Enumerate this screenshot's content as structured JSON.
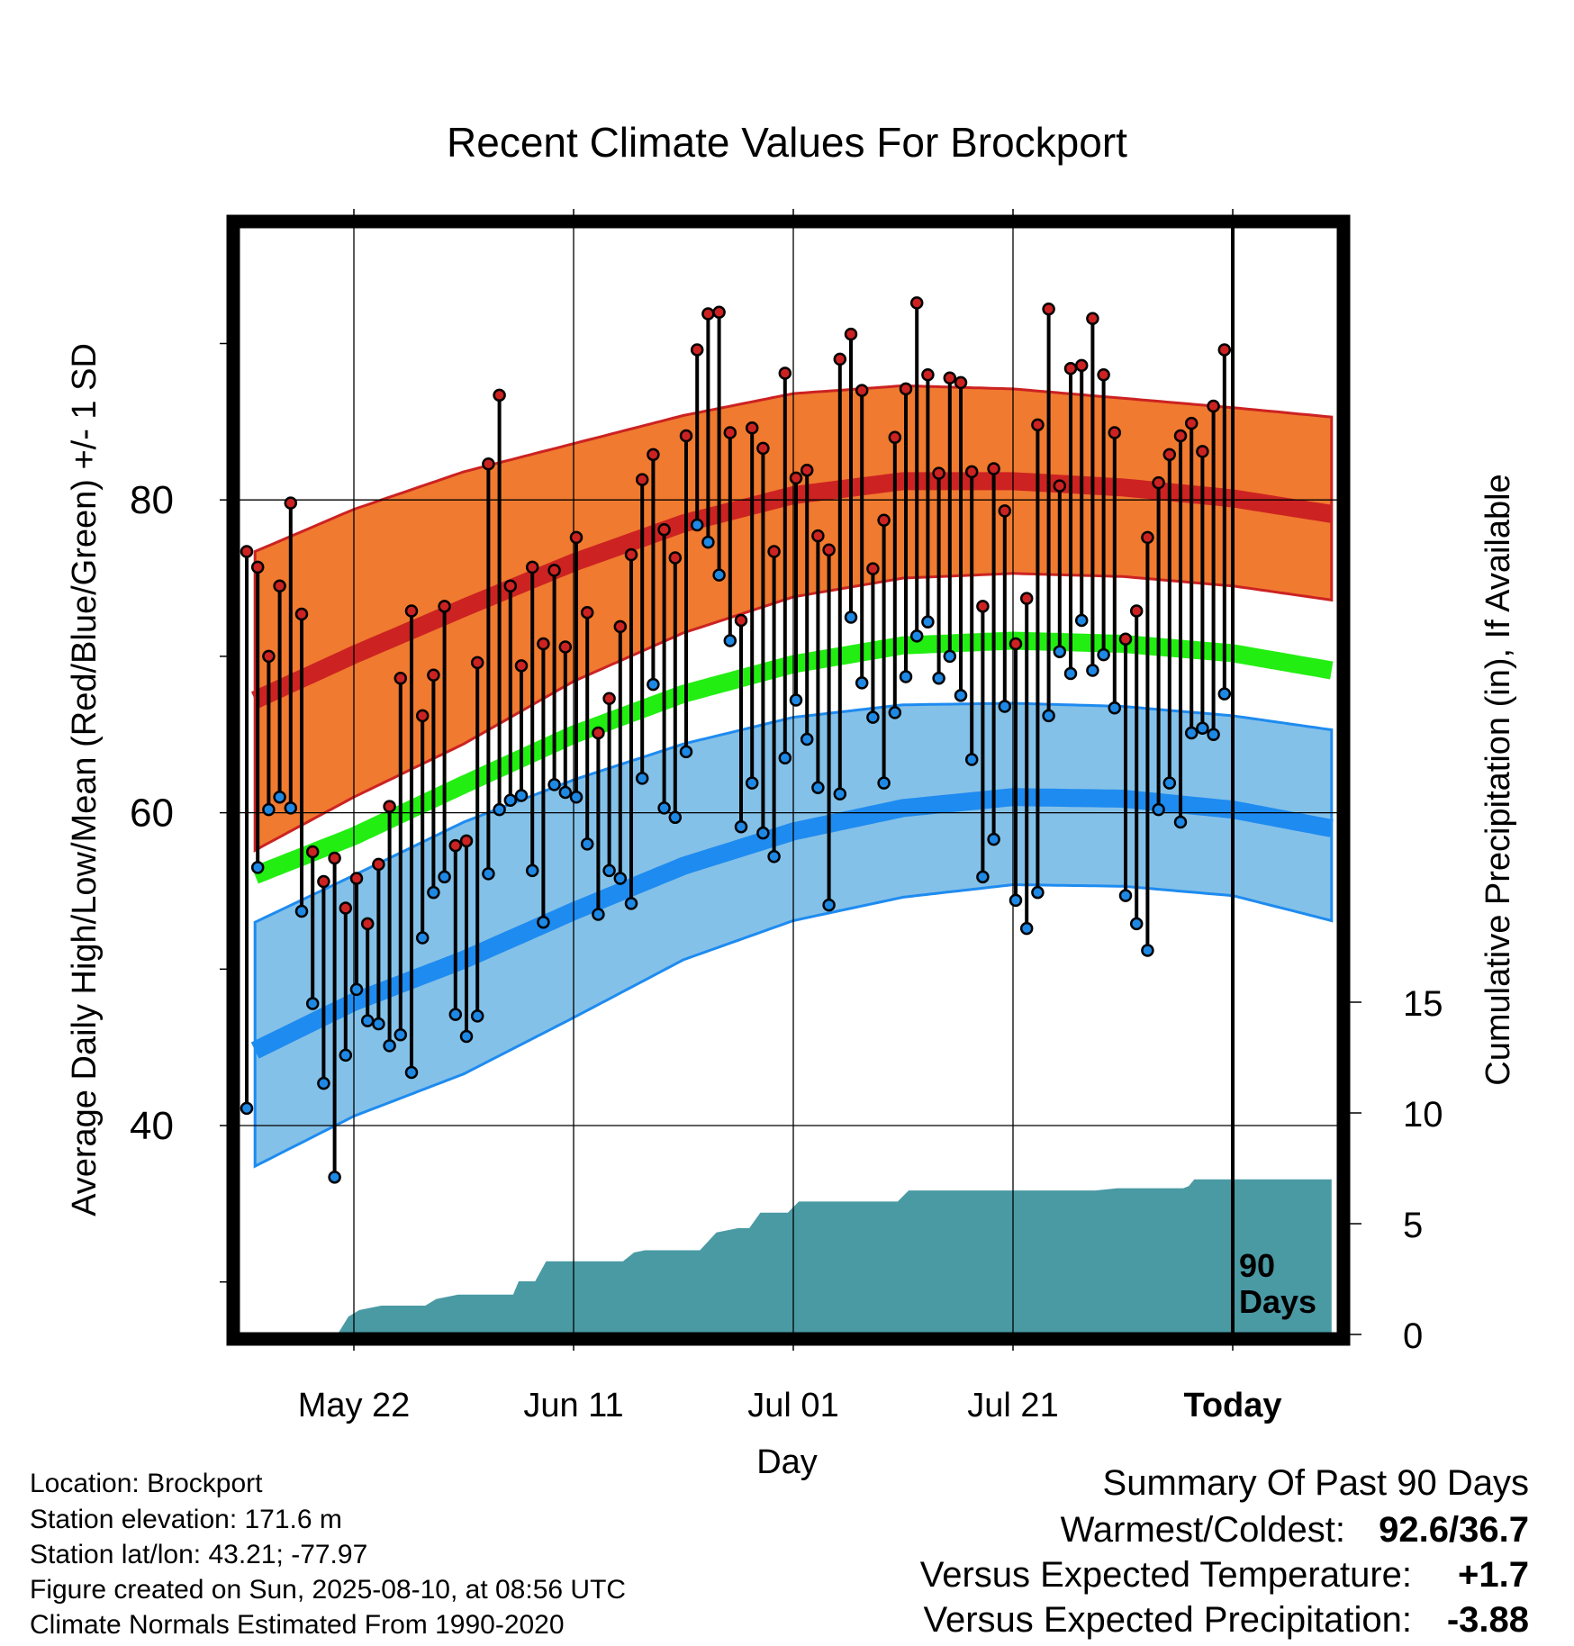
{
  "chart_data": {
    "type": "line",
    "title": "Recent Climate Values For Brockport",
    "xlabel": "Day",
    "ylabel_left": "Average Daily High/Low/Mean (Red/Blue/Green) +/- 1 SD",
    "ylabel_right": "Cumulative Precipitation (in), If Available",
    "x_range_days": [
      -89,
      9
    ],
    "ylim": [
      27,
      98
    ],
    "precip_ylim": [
      0,
      50
    ],
    "x_ticks": [
      {
        "day": -80,
        "label": "May 22"
      },
      {
        "day": -60,
        "label": "Jun 11"
      },
      {
        "day": -40,
        "label": "Jul 01"
      },
      {
        "day": -20,
        "label": "Jul 21"
      },
      {
        "day": 0,
        "label": "Today"
      }
    ],
    "y_ticks": [
      40,
      60,
      80
    ],
    "y_minor_ticks": [
      30,
      50,
      70,
      90
    ],
    "precip_ticks": [
      0,
      5,
      10,
      15
    ],
    "today_label": "90\nDays",
    "colors": {
      "high_band": "#F07A2F",
      "high_mean": "#CC2222",
      "low_band": "#84C1E8",
      "low_mean": "#1E8BF0",
      "mean": "#22EE11",
      "precip": "#4A9AA4",
      "high_dot": "#CC2222",
      "low_dot": "#1E88E5"
    },
    "series": [
      {
        "name": "High",
        "values": [
          76.7,
          75.7,
          70.0,
          74.5,
          79.8,
          72.7,
          57.5,
          55.6,
          57.1,
          53.9,
          55.8,
          52.9,
          56.7,
          60.4,
          68.6,
          72.9,
          66.2,
          68.8,
          73.2,
          57.9,
          58.2,
          69.6,
          82.3,
          86.7,
          74.5,
          69.4,
          75.7,
          70.8,
          75.5,
          70.6,
          77.6,
          72.8,
          65.1,
          67.3,
          71.9,
          76.5,
          81.3,
          82.9,
          78.1,
          76.3,
          84.1,
          89.6,
          91.9,
          92.0,
          84.3,
          72.3,
          84.6,
          83.3,
          76.7,
          88.1,
          81.4,
          81.9,
          77.7,
          76.8,
          89.0,
          90.6,
          87.0,
          75.6,
          78.7,
          84.0,
          87.1,
          92.6,
          88.0,
          81.7,
          87.8,
          87.5,
          81.8,
          73.2,
          82.0,
          79.3,
          70.8,
          73.7,
          84.8,
          92.2,
          80.9,
          88.4,
          88.6,
          91.6,
          88.0,
          84.3,
          71.1,
          72.9,
          77.6,
          81.1,
          82.9,
          84.1,
          84.9,
          83.1,
          86.0,
          89.6
        ]
      },
      {
        "name": "Low",
        "values": [
          41.1,
          56.5,
          60.2,
          61.0,
          60.3,
          53.7,
          47.8,
          42.7,
          36.7,
          44.5,
          48.7,
          46.7,
          46.5,
          45.1,
          45.8,
          43.4,
          52.0,
          54.9,
          55.9,
          47.1,
          45.7,
          47.0,
          56.1,
          60.2,
          60.8,
          61.1,
          56.3,
          53.0,
          61.8,
          61.3,
          61.0,
          58.0,
          53.5,
          56.3,
          55.8,
          54.2,
          62.2,
          68.2,
          60.3,
          59.7,
          63.9,
          78.4,
          77.3,
          75.2,
          71.0,
          59.1,
          61.9,
          58.7,
          57.2,
          63.5,
          67.2,
          64.7,
          61.6,
          54.1,
          61.2,
          72.5,
          68.3,
          66.1,
          61.9,
          66.4,
          68.7,
          71.3,
          72.2,
          68.6,
          70.0,
          67.5,
          63.4,
          55.9,
          58.3,
          66.8,
          54.4,
          52.6,
          54.9,
          66.2,
          70.3,
          68.9,
          72.3,
          69.1,
          70.1,
          66.7,
          54.7,
          52.9,
          51.2,
          60.2,
          61.9,
          59.4,
          65.1,
          65.4,
          65.0,
          67.6
        ]
      },
      {
        "name": "Normal High",
        "knots": [
          [
            -89,
            67.2
          ],
          [
            -80,
            70.1
          ],
          [
            -70,
            73.1
          ],
          [
            -60,
            76.0
          ],
          [
            -50,
            78.5
          ],
          [
            -40,
            80.3
          ],
          [
            -30,
            81.2
          ],
          [
            -20,
            81.2
          ],
          [
            -10,
            80.8
          ],
          [
            0,
            80.1
          ],
          [
            9,
            79.1
          ]
        ]
      },
      {
        "name": "High +1 SD",
        "knots": [
          [
            -89,
            76.7
          ],
          [
            -80,
            79.4
          ],
          [
            -70,
            81.8
          ],
          [
            -60,
            83.6
          ],
          [
            -50,
            85.4
          ],
          [
            -40,
            86.8
          ],
          [
            -30,
            87.3
          ],
          [
            -20,
            87.1
          ],
          [
            -10,
            86.5
          ],
          [
            0,
            85.9
          ],
          [
            9,
            85.3
          ]
        ]
      },
      {
        "name": "High -1 SD",
        "knots": [
          [
            -89,
            57.6
          ],
          [
            -80,
            61.0
          ],
          [
            -70,
            64.4
          ],
          [
            -60,
            68.4
          ],
          [
            -50,
            71.5
          ],
          [
            -40,
            73.8
          ],
          [
            -30,
            75.0
          ],
          [
            -20,
            75.3
          ],
          [
            -10,
            75.1
          ],
          [
            0,
            74.5
          ],
          [
            9,
            73.6
          ]
        ]
      },
      {
        "name": "Normal Mean",
        "knots": [
          [
            -89,
            56.0
          ],
          [
            -80,
            58.5
          ],
          [
            -70,
            61.8
          ],
          [
            -60,
            65.0
          ],
          [
            -50,
            67.6
          ],
          [
            -40,
            69.5
          ],
          [
            -30,
            70.7
          ],
          [
            -20,
            71.0
          ],
          [
            -10,
            70.8
          ],
          [
            0,
            70.2
          ],
          [
            9,
            69.1
          ]
        ]
      },
      {
        "name": "Normal Low",
        "knots": [
          [
            -89,
            44.8
          ],
          [
            -80,
            47.9
          ],
          [
            -70,
            50.6
          ],
          [
            -60,
            53.7
          ],
          [
            -50,
            56.6
          ],
          [
            -40,
            58.8
          ],
          [
            -30,
            60.3
          ],
          [
            -20,
            61.0
          ],
          [
            -10,
            60.9
          ],
          [
            0,
            60.2
          ],
          [
            9,
            59.0
          ]
        ]
      },
      {
        "name": "Low +1 SD",
        "knots": [
          [
            -89,
            53.0
          ],
          [
            -80,
            56.0
          ],
          [
            -70,
            59.4
          ],
          [
            -60,
            62.1
          ],
          [
            -50,
            64.4
          ],
          [
            -40,
            66.1
          ],
          [
            -30,
            66.9
          ],
          [
            -20,
            67.0
          ],
          [
            -10,
            66.8
          ],
          [
            0,
            66.2
          ],
          [
            9,
            65.3
          ]
        ]
      },
      {
        "name": "Low -1 SD",
        "knots": [
          [
            -89,
            37.4
          ],
          [
            -80,
            40.6
          ],
          [
            -70,
            43.3
          ],
          [
            -60,
            46.9
          ],
          [
            -50,
            50.6
          ],
          [
            -40,
            53.1
          ],
          [
            -30,
            54.6
          ],
          [
            -20,
            55.4
          ],
          [
            -10,
            55.3
          ],
          [
            0,
            54.7
          ],
          [
            9,
            53.1
          ]
        ]
      },
      {
        "name": "Cumulative Precipitation",
        "knots": [
          [
            -89,
            0
          ],
          [
            -81.5,
            0
          ],
          [
            -80.5,
            0.8
          ],
          [
            -79.5,
            1.1
          ],
          [
            -77.5,
            1.3
          ],
          [
            -73.5,
            1.3
          ],
          [
            -72.5,
            1.6
          ],
          [
            -70.5,
            1.8
          ],
          [
            -65.5,
            1.8
          ],
          [
            -65,
            2.4
          ],
          [
            -63.5,
            2.4
          ],
          [
            -62.5,
            3.3
          ],
          [
            -58,
            3.3
          ],
          [
            -55.5,
            3.3
          ],
          [
            -54.5,
            3.7
          ],
          [
            -53.5,
            3.8
          ],
          [
            -48.5,
            3.8
          ],
          [
            -47,
            4.6
          ],
          [
            -45,
            4.8
          ],
          [
            -44,
            4.8
          ],
          [
            -43,
            5.5
          ],
          [
            -41.5,
            5.5
          ],
          [
            -40.5,
            5.5
          ],
          [
            -39.5,
            6.0
          ],
          [
            -30.5,
            6.0
          ],
          [
            -29.5,
            6.5
          ],
          [
            -21.5,
            6.5
          ],
          [
            -20.5,
            6.5
          ],
          [
            -12.5,
            6.5
          ],
          [
            -10.5,
            6.6
          ],
          [
            -4.5,
            6.6
          ],
          [
            -4,
            6.7
          ],
          [
            -3.5,
            7.0
          ],
          [
            9,
            7.0
          ]
        ]
      }
    ]
  },
  "station_info": [
    "Location: Brockport",
    "Station elevation: 171.6 m",
    "Station lat/lon: 43.21; -77.97",
    "Figure created on Sun, 2025-08-10, at 08:56 UTC",
    "Climate Normals Estimated From 1990-2020"
  ],
  "summary": {
    "title": "Summary Of Past 90 Days",
    "warmest_coldest_label": "Warmest/Coldest:",
    "warmest_coldest_value": "92.6/36.7",
    "temp_label": "Versus Expected Temperature:",
    "temp_value": "+1.7",
    "temp_color": "#CC2222",
    "precip_label": "Versus Expected Precipitation:",
    "precip_value": "-3.88",
    "precip_color": "#A0522D"
  }
}
